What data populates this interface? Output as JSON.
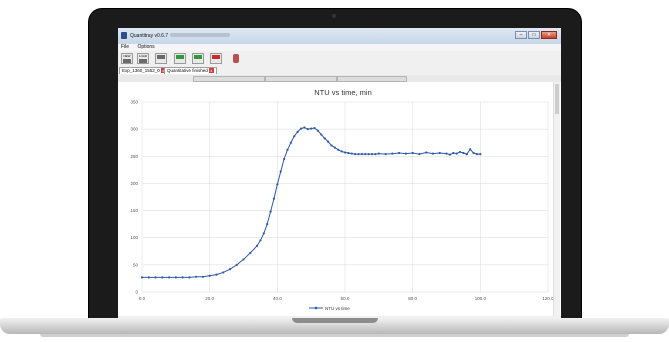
{
  "window": {
    "title": "Quantitray v0.6.7",
    "controls": {
      "minimize": "–",
      "maximize": "□",
      "close": "✕"
    }
  },
  "menu": {
    "items": [
      "File",
      "Options"
    ]
  },
  "toolbar": {
    "buttons": [
      {
        "label": "NEW",
        "icon": "new-icon"
      },
      {
        "label": "LOAD",
        "icon": "load-icon"
      },
      {
        "label": "",
        "icon": "save-icon"
      },
      {
        "label": "",
        "icon": "start-green-icon"
      },
      {
        "label": "",
        "icon": "export-green-icon"
      },
      {
        "label": "",
        "icon": "stop-red-icon"
      },
      {
        "label": "",
        "icon": "hand-icon"
      }
    ]
  },
  "tabs": [
    {
      "label": "Exp_1360_1552_0",
      "close": "x"
    },
    {
      "label": "Quantitative finished",
      "close": "x"
    }
  ],
  "chart_data": {
    "type": "line",
    "title": "NTU vs time, min",
    "xlabel": "",
    "ylabel": "",
    "xlim": [
      0,
      120
    ],
    "ylim": [
      0,
      350
    ],
    "xticks": [
      "0.0",
      "20.0",
      "40.0",
      "60.0",
      "80.0",
      "100.0",
      "120.0"
    ],
    "yticks": [
      "0",
      "50",
      "100",
      "150",
      "200",
      "250",
      "300",
      "350"
    ],
    "grid": true,
    "legend_position": "bottom",
    "color": "#2e5aa8",
    "series": [
      {
        "name": "NTU vs time",
        "x": [
          0,
          2,
          4,
          6,
          8,
          10,
          12,
          14,
          16,
          18,
          20,
          22,
          24,
          26,
          28,
          30,
          32,
          34,
          35,
          36,
          37,
          38,
          39,
          40,
          41,
          42,
          43,
          44,
          45,
          46,
          47,
          48,
          49,
          50,
          51,
          52,
          53,
          54,
          55,
          56,
          57,
          58,
          59,
          60,
          61,
          62,
          63,
          64,
          65,
          66,
          67,
          68,
          69,
          70,
          72,
          74,
          76,
          78,
          80,
          82,
          84,
          86,
          88,
          90,
          91,
          92,
          93,
          94,
          95,
          96,
          97,
          98,
          99,
          100
        ],
        "y": [
          27,
          27,
          27,
          27,
          27,
          27,
          27,
          27,
          28,
          28,
          30,
          32,
          36,
          42,
          50,
          60,
          72,
          85,
          95,
          108,
          125,
          148,
          172,
          198,
          222,
          245,
          262,
          275,
          287,
          295,
          301,
          303,
          300,
          301,
          302,
          297,
          290,
          283,
          277,
          270,
          266,
          262,
          259,
          257,
          256,
          255,
          254,
          254,
          254,
          254,
          254,
          254,
          254,
          255,
          254,
          255,
          256,
          255,
          256,
          254,
          257,
          255,
          256,
          255,
          253,
          256,
          255,
          258,
          256,
          254,
          263,
          256,
          254,
          254
        ]
      }
    ]
  }
}
